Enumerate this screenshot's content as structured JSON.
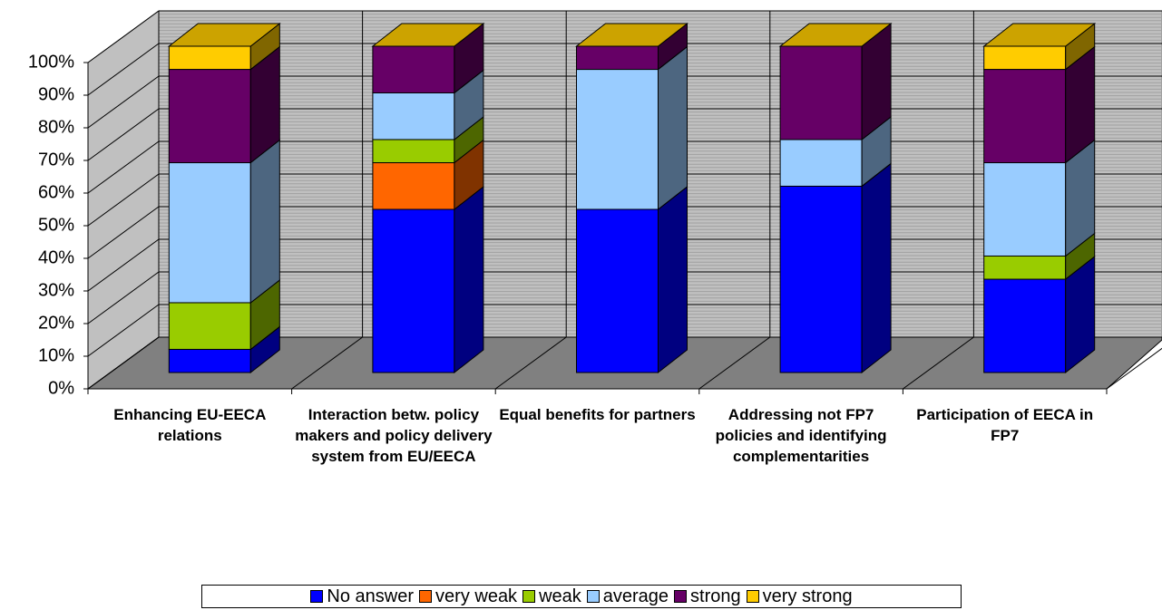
{
  "chart_data": {
    "type": "bar3d_stacked",
    "categories": [
      "Enhancing EU-EECA relations",
      "Interaction betw. policy makers and policy delivery system from EU/EECA",
      "Equal benefits for partners",
      "Addressing not FP7 policies and identifying complementarities",
      "Participation of EECA in FP7"
    ],
    "series": [
      {
        "name": "No answer",
        "color": "#0000ff",
        "values": [
          7.1,
          50,
          50,
          57.1,
          28.6
        ]
      },
      {
        "name": "very weak",
        "color": "#ff6600",
        "values": [
          0,
          14.3,
          0,
          0,
          0
        ]
      },
      {
        "name": "weak",
        "color": "#99cc00",
        "values": [
          14.3,
          7.1,
          0,
          0,
          7.1
        ]
      },
      {
        "name": "average",
        "color": "#99ccff",
        "values": [
          42.9,
          14.3,
          42.9,
          14.3,
          28.6
        ]
      },
      {
        "name": "strong",
        "color": "#660066",
        "values": [
          28.6,
          14.3,
          7.1,
          28.6,
          28.6
        ]
      },
      {
        "name": "very strong",
        "color": "#ffcc00",
        "values": [
          7.1,
          0,
          0,
          0,
          7.1
        ]
      }
    ],
    "ylim": [
      0,
      100
    ],
    "yticks": [
      {
        "value": 0,
        "label": "0%"
      },
      {
        "value": 10,
        "label": "10%"
      },
      {
        "value": 20,
        "label": "20%"
      },
      {
        "value": 30,
        "label": "30%"
      },
      {
        "value": 40,
        "label": "40%"
      },
      {
        "value": 50,
        "label": "50%"
      },
      {
        "value": 60,
        "label": "60%"
      },
      {
        "value": 70,
        "label": "70%"
      },
      {
        "value": 80,
        "label": "80%"
      },
      {
        "value": 90,
        "label": "90%"
      },
      {
        "value": 100,
        "label": "100%"
      }
    ],
    "grid": true,
    "legend": "bottom"
  }
}
